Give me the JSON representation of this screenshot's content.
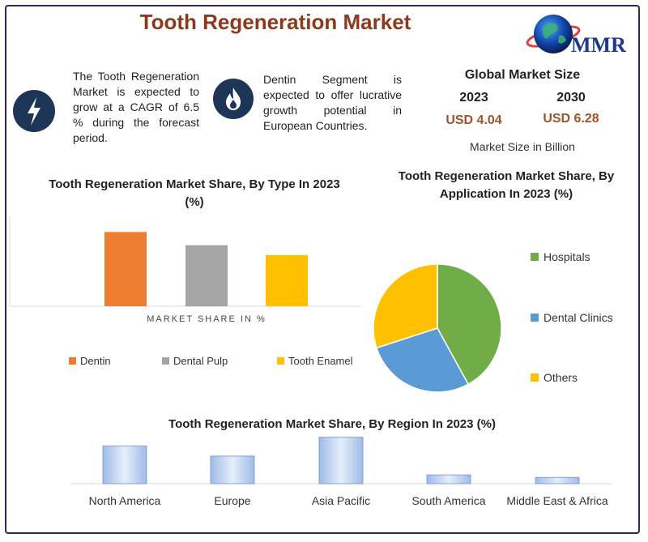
{
  "title": "Tooth Regeneration Market",
  "logo_text": "MMR",
  "info": {
    "blurb1": "The Tooth Regeneration Market is expected to grow at a CAGR of 6.5 % during the forecast period.",
    "blurb2": "Dentin Segment is expected to offer lucrative growth potential in European Countries."
  },
  "global_market": {
    "heading": "Global Market Size",
    "year1": "2023",
    "year2": "2030",
    "value1": "USD 4.04",
    "value2": "USD 6.28",
    "unit": "Market Size in Billion"
  },
  "colors": {
    "brand_brown": "#8b3a1e",
    "value_brown": "#a0522d",
    "icon_navy": "#1d3557",
    "dentin": "#ed7d31",
    "dental_pulp": "#a5a5a5",
    "tooth_enamel": "#ffc000",
    "hospitals": "#70ad47",
    "dental_clinics": "#5b9bd5",
    "others": "#ffc000",
    "region_bar": "#c9d9f2"
  },
  "chart_data": [
    {
      "type": "bar",
      "title": "Tooth Regeneration Market Share, By Type In 2023 (%)",
      "xlabel": "MARKET SHARE IN %",
      "ylabel": "",
      "categories": [
        "Dentin",
        "Dental Pulp",
        "Tooth Enamel"
      ],
      "values": [
        45,
        37,
        31
      ],
      "ylim": [
        0,
        55
      ],
      "legend": "bottom",
      "grid": false
    },
    {
      "type": "pie",
      "title": "Tooth Regeneration Market Share, By Application In 2023 (%)",
      "categories": [
        "Hospitals",
        "Dental Clinics",
        "Others"
      ],
      "values": [
        42,
        28,
        30
      ],
      "legend": "right"
    },
    {
      "type": "bar",
      "title": "Tooth Regeneration Market Share, By Region In 2023 (%)",
      "categories": [
        "North America",
        "Europe",
        "Asia Pacific",
        "South America",
        "Middle East & Africa"
      ],
      "values": [
        30,
        22,
        37,
        7,
        5
      ],
      "ylim": [
        0,
        40
      ],
      "grid": false
    }
  ]
}
